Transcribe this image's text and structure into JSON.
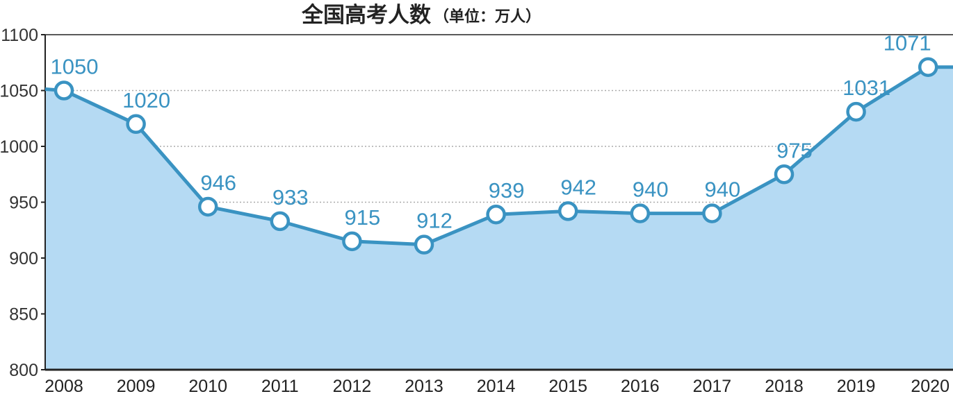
{
  "chart_data": {
    "type": "area",
    "title": "全国高考人数",
    "title_unit": "（单位：万人）",
    "x": [
      "2008",
      "2009",
      "2010",
      "2011",
      "2012",
      "2013",
      "2014",
      "2015",
      "2016",
      "2017",
      "2018",
      "2019",
      "2020"
    ],
    "values": [
      1050,
      1020,
      946,
      933,
      915,
      912,
      939,
      942,
      940,
      940,
      975,
      1031,
      1071
    ],
    "y_ticks": [
      1100,
      1050,
      1000,
      950,
      900,
      850,
      800
    ],
    "ylim": [
      800,
      1100
    ],
    "grid": true,
    "legend": "none",
    "colors": {
      "line": "#3a93c2",
      "fill": "#b5daf3",
      "marker_fill": "#ffffff",
      "label": "#3a93c2",
      "grid": "#aaaaaa",
      "axis": "#222222"
    }
  }
}
